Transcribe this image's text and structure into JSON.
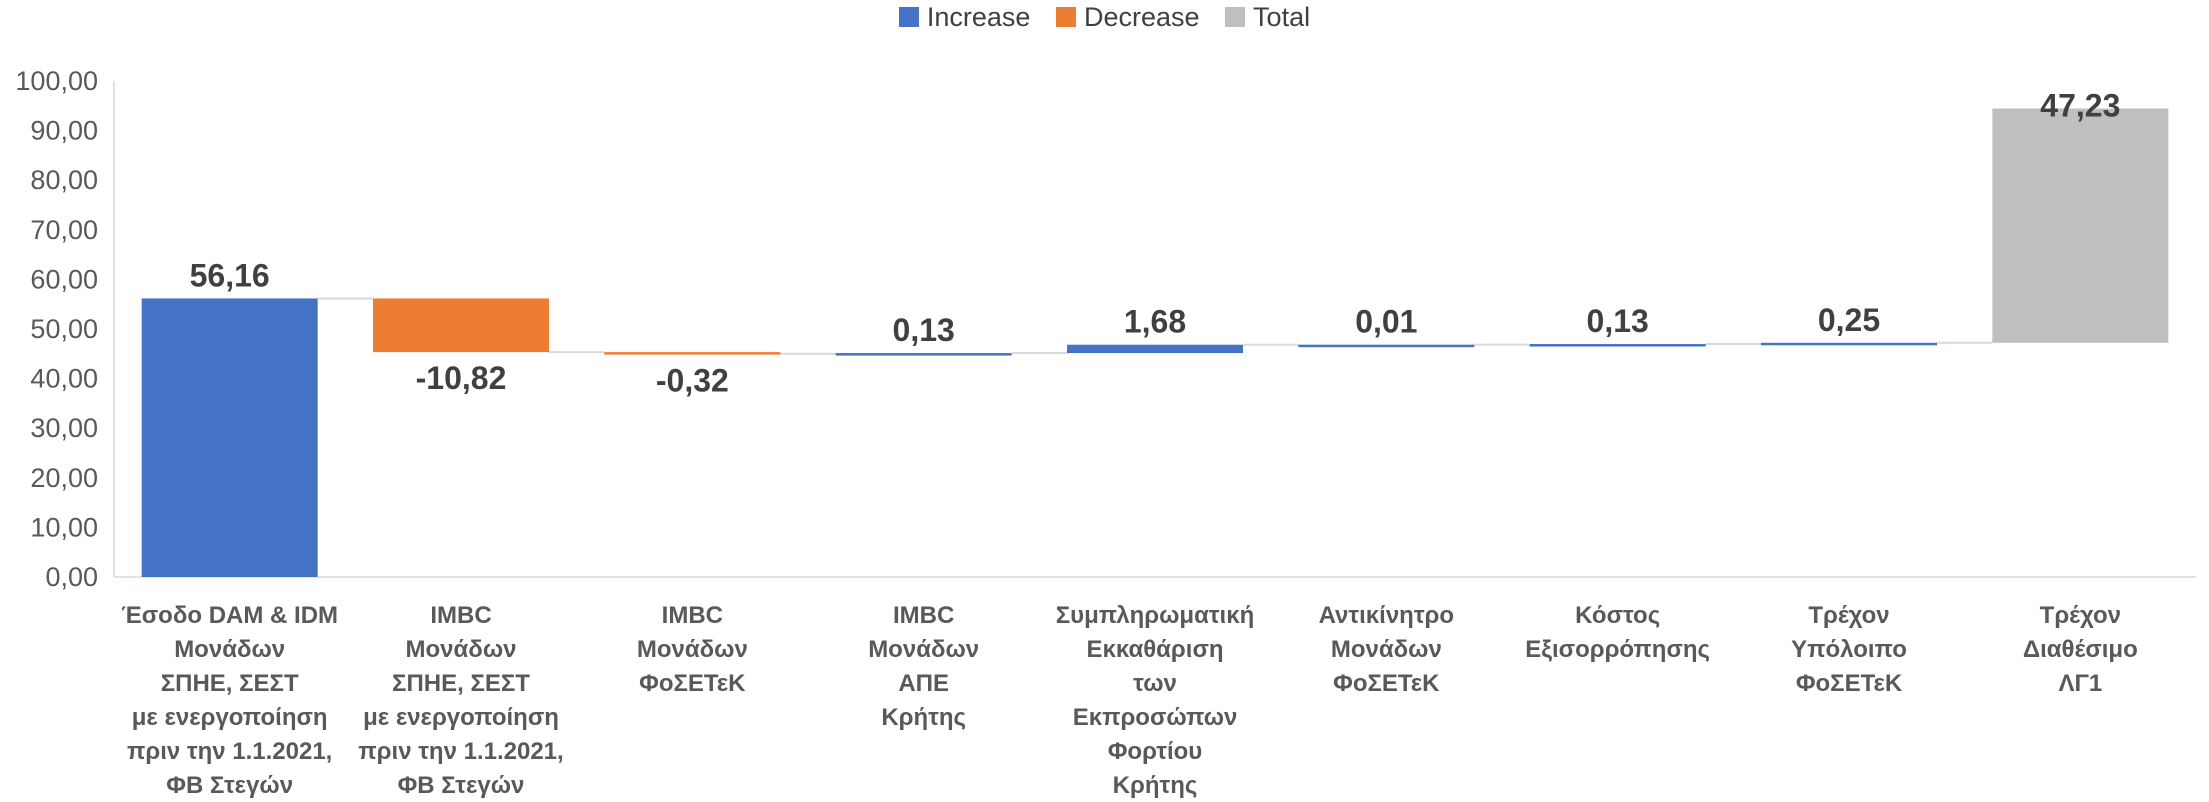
{
  "chart_data": {
    "type": "waterfall",
    "legend": [
      {
        "label": "Increase",
        "color": "#4472C4"
      },
      {
        "label": "Decrease",
        "color": "#ED7D31"
      },
      {
        "label": "Total",
        "color": "#BFBFBF"
      }
    ],
    "legend_position": "top",
    "ylim": [
      0,
      100
    ],
    "y_ticks": [
      "0,00",
      "10,00",
      "20,00",
      "30,00",
      "40,00",
      "50,00",
      "60,00",
      "70,00",
      "80,00",
      "90,00",
      "100,00"
    ],
    "grid": false,
    "categories": [
      [
        "Έσοδο DAM & IDM",
        "Μονάδων",
        "ΣΠΗΕ, ΣΕΣΤ",
        "με ενεργοποίηση",
        "πριν την 1.1.2021,",
        "ΦΒ Στεγών"
      ],
      [
        "IMBC",
        "Μονάδων",
        "ΣΠΗΕ, ΣΕΣΤ",
        "με ενεργοποίηση",
        "πριν την 1.1.2021,",
        "ΦΒ Στεγών"
      ],
      [
        "IMBC",
        "Μονάδων",
        "ΦοΣΕΤεΚ"
      ],
      [
        "IMBC",
        "Μονάδων",
        "ΑΠΕ",
        "Κρήτης"
      ],
      [
        "Συμπληρωματική",
        "Εκκαθάριση",
        "των",
        "Εκπροσώπων",
        "Φορτίου",
        "Κρήτης"
      ],
      [
        "Αντικίνητρο",
        "Μονάδων",
        "ΦοΣΕΤεΚ"
      ],
      [
        "Κόστος",
        "Εξισορρόπησης"
      ],
      [
        "Τρέχον",
        "Υπόλοιπο",
        "ΦοΣΕΤεΚ"
      ],
      [
        "Τρέχον",
        "Διαθέσιμο",
        "ΛΓ1"
      ]
    ],
    "values": [
      56.16,
      -10.82,
      -0.32,
      0.13,
      1.68,
      0.01,
      0.13,
      0.25,
      47.23
    ],
    "bar_types": [
      "increase",
      "decrease",
      "decrease",
      "increase",
      "increase",
      "increase",
      "increase",
      "increase",
      "total"
    ],
    "data_labels": [
      "56,16",
      "-10,82",
      "-0,32",
      "0,13",
      "1,68",
      "0,01",
      "0,13",
      "0,25",
      "47,23"
    ],
    "bar_ranges": [
      [
        0,
        56.16
      ],
      [
        45.34,
        56.16
      ],
      [
        45.02,
        45.34
      ],
      [
        45.02,
        45.15
      ],
      [
        45.15,
        46.83
      ],
      [
        46.83,
        46.84
      ],
      [
        46.84,
        46.97
      ],
      [
        46.97,
        47.22
      ],
      [
        47.22,
        94.45
      ]
    ]
  }
}
